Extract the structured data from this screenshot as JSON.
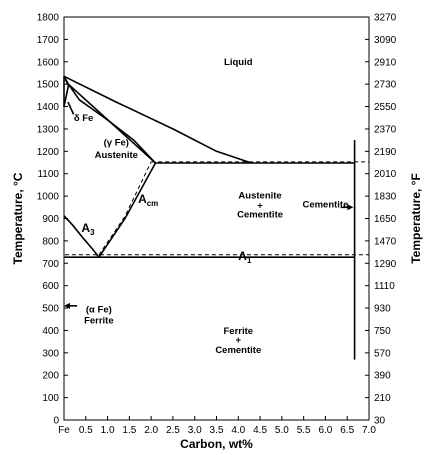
{
  "chart_data": {
    "type": "line",
    "xlabel": "Carbon, wt%",
    "ylabel_left": "Temperature, °C",
    "ylabel_right": "Temperature, °F",
    "xlim": [
      0,
      7.0
    ],
    "ylim_left": [
      0,
      1800
    ],
    "ylim_right": [
      30,
      3270
    ],
    "x_ticks": [
      "Fe",
      "0.5",
      "1.0",
      "1.5",
      "2.0",
      "2.5",
      "3.0",
      "3.5",
      "4.0",
      "4.5",
      "5.0",
      "5.5",
      "6.0",
      "6.5",
      "7.0"
    ],
    "x_tick_values": [
      0,
      0.5,
      1.0,
      1.5,
      2.0,
      2.5,
      3.0,
      3.5,
      4.0,
      4.5,
      5.0,
      5.5,
      6.0,
      6.5,
      7.0
    ],
    "y_ticks_left": [
      0,
      100,
      200,
      300,
      400,
      500,
      600,
      700,
      800,
      900,
      1000,
      1100,
      1200,
      1300,
      1400,
      1500,
      1600,
      1700,
      1800
    ],
    "y_ticks_right": [
      30,
      210,
      390,
      570,
      750,
      930,
      1110,
      1290,
      1470,
      1650,
      1830,
      2010,
      2190,
      2370,
      2550,
      2730,
      2910,
      3090,
      3270
    ],
    "grid": false,
    "series": [
      {
        "id": "liquidus-left",
        "style": "solid",
        "points": [
          [
            0,
            1535
          ],
          [
            0.1,
            1500
          ],
          [
            2.1,
            1148
          ]
        ]
      },
      {
        "id": "liquidus-right",
        "style": "solid",
        "points": [
          [
            0,
            1535
          ],
          [
            1.2,
            1420
          ],
          [
            2.5,
            1300
          ],
          [
            3.5,
            1200
          ],
          [
            4.3,
            1148
          ]
        ]
      },
      {
        "id": "solidus",
        "style": "solid",
        "points": [
          [
            0.1,
            1500
          ],
          [
            0.35,
            1430
          ],
          [
            1.0,
            1340
          ],
          [
            1.6,
            1250
          ],
          [
            2.1,
            1148
          ]
        ]
      },
      {
        "id": "delta-upper",
        "style": "solid",
        "points": [
          [
            0,
            1535
          ],
          [
            0.1,
            1493
          ]
        ]
      },
      {
        "id": "delta-lower",
        "style": "solid",
        "points": [
          [
            0,
            1400
          ],
          [
            0.1,
            1493
          ]
        ]
      },
      {
        "id": "delta-left",
        "style": "solid",
        "points": [
          [
            0,
            1535
          ],
          [
            0,
            1400
          ]
        ]
      },
      {
        "id": "eutectic",
        "style": "solid",
        "points": [
          [
            2.1,
            1148
          ],
          [
            6.67,
            1148
          ]
        ]
      },
      {
        "id": "eutectic-dashed",
        "style": "dashed",
        "points": [
          [
            2.0,
            1153
          ],
          [
            7.0,
            1153
          ]
        ]
      },
      {
        "id": "a3",
        "style": "solid",
        "points": [
          [
            0,
            912
          ],
          [
            0.2,
            870
          ],
          [
            0.45,
            810
          ],
          [
            0.65,
            765
          ],
          [
            0.8,
            727
          ]
        ]
      },
      {
        "id": "acm",
        "style": "solid",
        "points": [
          [
            0.8,
            727
          ],
          [
            1.4,
            900
          ],
          [
            2.1,
            1148
          ]
        ]
      },
      {
        "id": "acm-dashed",
        "style": "dashed",
        "points": [
          [
            0.8,
            737
          ],
          [
            1.4,
            910
          ],
          [
            2.0,
            1153
          ]
        ]
      },
      {
        "id": "a1",
        "style": "solid",
        "points": [
          [
            0.02,
            727
          ],
          [
            6.67,
            727
          ]
        ]
      },
      {
        "id": "a1-dashed",
        "style": "dashed",
        "points": [
          [
            0.02,
            738
          ],
          [
            7.0,
            738
          ]
        ]
      },
      {
        "id": "ferrite-line",
        "style": "solid",
        "points": [
          [
            0,
            727
          ],
          [
            0.02,
            727
          ]
        ]
      },
      {
        "id": "cementite-line",
        "style": "solid",
        "points": [
          [
            6.67,
            1250
          ],
          [
            6.67,
            270
          ]
        ]
      }
    ],
    "annotations": {
      "liquid": {
        "text": "Liquid",
        "x": 4.0,
        "y": 1585
      },
      "delta_fe": {
        "text": "δ Fe",
        "x": 0.45,
        "y": 1335
      },
      "gamma_fe": {
        "text": "(γ Fe)",
        "x": 1.2,
        "y": 1225
      },
      "austenite": {
        "text": "Austenite",
        "x": 1.2,
        "y": 1170
      },
      "austenite_cementite_1": {
        "text": "Austenite",
        "x": 4.5,
        "y": 990
      },
      "austenite_cementite_2": {
        "text": "+",
        "x": 4.5,
        "y": 945
      },
      "austenite_cementite_3": {
        "text": "Cementite",
        "x": 4.5,
        "y": 905
      },
      "cementite": {
        "text": "Cementite",
        "x": 6.0,
        "y": 950
      },
      "a3": {
        "text": "A",
        "sub": "3",
        "x": 0.4,
        "y": 840
      },
      "acm": {
        "text": "A",
        "sub": "cm",
        "x": 1.7,
        "y": 970
      },
      "a1": {
        "text": "A",
        "sub": "1",
        "x": 4.0,
        "y": 715
      },
      "alpha_fe": {
        "text": "(α Fe)",
        "x": 0.8,
        "y": 480
      },
      "ferrite": {
        "text": "Ferrite",
        "x": 0.8,
        "y": 430
      },
      "ferrite_cementite_1": {
        "text": "Ferrite",
        "x": 4.0,
        "y": 385
      },
      "ferrite_cementite_2": {
        "text": "+",
        "x": 4.0,
        "y": 345
      },
      "ferrite_cementite_3": {
        "text": "Cementite",
        "x": 4.0,
        "y": 300
      }
    }
  }
}
